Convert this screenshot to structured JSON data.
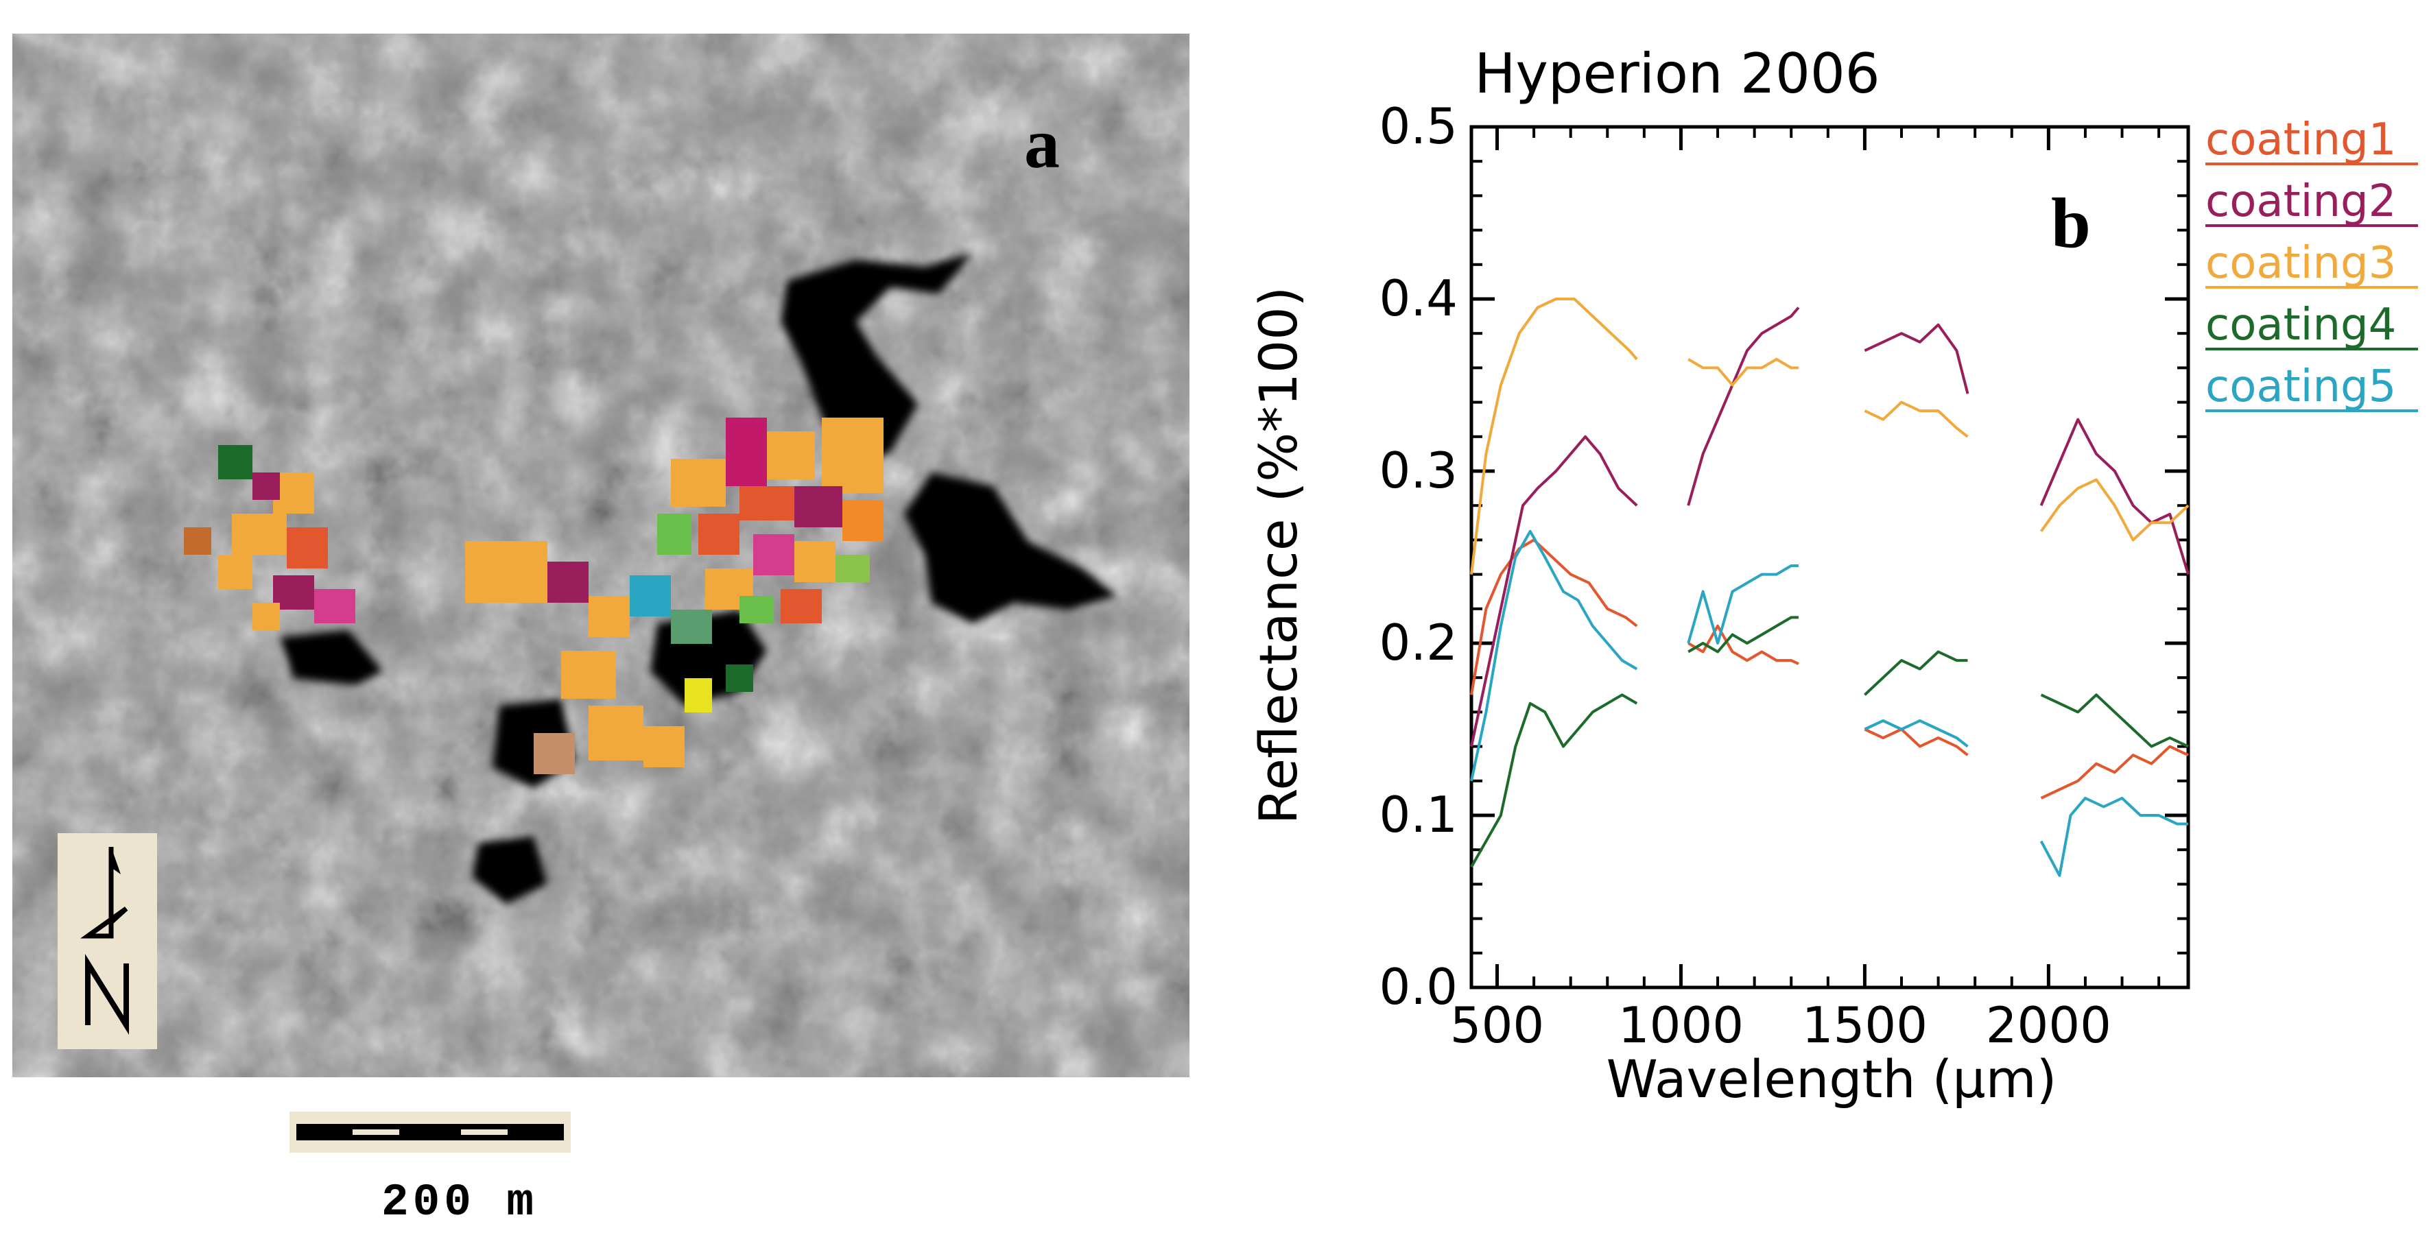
{
  "panel_a": {
    "label": "a",
    "scale_bar_label": "200 m",
    "north_arrow_label": "N"
  },
  "chart_data": {
    "type": "line",
    "panel_label": "b",
    "title": "Hyperion 2006",
    "xlabel": "Wavelength (μm)",
    "ylabel": "Reflectance (%*100)",
    "xlim": [
      430,
      2380
    ],
    "ylim": [
      0.0,
      0.5
    ],
    "xticks": [
      500,
      1000,
      1500,
      2000
    ],
    "yticks": [
      0.0,
      0.1,
      0.2,
      0.3,
      0.4,
      0.5
    ],
    "ytick_labels": [
      "0.0",
      "0.1",
      "0.2",
      "0.3",
      "0.4",
      "0.5"
    ],
    "grid": false,
    "legend_position": "outside-right",
    "series": [
      {
        "name": "coating1",
        "color": "#e2572d",
        "segments": [
          [
            [
              430,
              0.17
            ],
            [
              470,
              0.22
            ],
            [
              510,
              0.24
            ],
            [
              560,
              0.255
            ],
            [
              600,
              0.26
            ],
            [
              650,
              0.25
            ],
            [
              700,
              0.24
            ],
            [
              750,
              0.235
            ],
            [
              800,
              0.22
            ],
            [
              850,
              0.215
            ],
            [
              880,
              0.21
            ]
          ],
          [
            [
              1020,
              0.2
            ],
            [
              1060,
              0.195
            ],
            [
              1100,
              0.21
            ],
            [
              1140,
              0.195
            ],
            [
              1180,
              0.19
            ],
            [
              1220,
              0.195
            ],
            [
              1260,
              0.19
            ],
            [
              1300,
              0.19
            ],
            [
              1320,
              0.188
            ]
          ],
          [
            [
              1500,
              0.15
            ],
            [
              1550,
              0.145
            ],
            [
              1600,
              0.15
            ],
            [
              1650,
              0.14
            ],
            [
              1700,
              0.145
            ],
            [
              1750,
              0.14
            ],
            [
              1780,
              0.135
            ]
          ],
          [
            [
              1980,
              0.11
            ],
            [
              2030,
              0.115
            ],
            [
              2080,
              0.12
            ],
            [
              2130,
              0.13
            ],
            [
              2180,
              0.125
            ],
            [
              2230,
              0.135
            ],
            [
              2280,
              0.13
            ],
            [
              2330,
              0.14
            ],
            [
              2380,
              0.135
            ]
          ]
        ]
      },
      {
        "name": "coating2",
        "color": "#9a1e5c",
        "segments": [
          [
            [
              430,
              0.14
            ],
            [
              480,
              0.19
            ],
            [
              530,
              0.24
            ],
            [
              570,
              0.28
            ],
            [
              610,
              0.29
            ],
            [
              660,
              0.3
            ],
            [
              700,
              0.31
            ],
            [
              740,
              0.32
            ],
            [
              780,
              0.31
            ],
            [
              830,
              0.29
            ],
            [
              880,
              0.28
            ]
          ],
          [
            [
              1020,
              0.28
            ],
            [
              1060,
              0.31
            ],
            [
              1100,
              0.33
            ],
            [
              1140,
              0.35
            ],
            [
              1180,
              0.37
            ],
            [
              1220,
              0.38
            ],
            [
              1260,
              0.385
            ],
            [
              1300,
              0.39
            ],
            [
              1320,
              0.395
            ]
          ],
          [
            [
              1500,
              0.37
            ],
            [
              1550,
              0.375
            ],
            [
              1600,
              0.38
            ],
            [
              1650,
              0.375
            ],
            [
              1700,
              0.385
            ],
            [
              1750,
              0.37
            ],
            [
              1780,
              0.345
            ]
          ],
          [
            [
              1980,
              0.28
            ],
            [
              2030,
              0.305
            ],
            [
              2080,
              0.33
            ],
            [
              2130,
              0.31
            ],
            [
              2180,
              0.3
            ],
            [
              2230,
              0.28
            ],
            [
              2280,
              0.27
            ],
            [
              2330,
              0.275
            ],
            [
              2380,
              0.24
            ]
          ]
        ]
      },
      {
        "name": "coating3",
        "color": "#f2a93b",
        "segments": [
          [
            [
              430,
              0.24
            ],
            [
              470,
              0.31
            ],
            [
              510,
              0.35
            ],
            [
              560,
              0.38
            ],
            [
              610,
              0.395
            ],
            [
              660,
              0.4
            ],
            [
              710,
              0.4
            ],
            [
              760,
              0.39
            ],
            [
              810,
              0.38
            ],
            [
              860,
              0.37
            ],
            [
              880,
              0.365
            ]
          ],
          [
            [
              1020,
              0.365
            ],
            [
              1060,
              0.36
            ],
            [
              1100,
              0.36
            ],
            [
              1140,
              0.35
            ],
            [
              1180,
              0.36
            ],
            [
              1220,
              0.36
            ],
            [
              1260,
              0.365
            ],
            [
              1300,
              0.36
            ],
            [
              1320,
              0.36
            ]
          ],
          [
            [
              1500,
              0.335
            ],
            [
              1550,
              0.33
            ],
            [
              1600,
              0.34
            ],
            [
              1650,
              0.335
            ],
            [
              1700,
              0.335
            ],
            [
              1750,
              0.325
            ],
            [
              1780,
              0.32
            ]
          ],
          [
            [
              1980,
              0.265
            ],
            [
              2030,
              0.28
            ],
            [
              2080,
              0.29
            ],
            [
              2130,
              0.295
            ],
            [
              2180,
              0.28
            ],
            [
              2230,
              0.26
            ],
            [
              2280,
              0.27
            ],
            [
              2330,
              0.27
            ],
            [
              2380,
              0.28
            ]
          ]
        ]
      },
      {
        "name": "coating4",
        "color": "#1c6b2a",
        "segments": [
          [
            [
              430,
              0.07
            ],
            [
              470,
              0.085
            ],
            [
              510,
              0.1
            ],
            [
              550,
              0.14
            ],
            [
              590,
              0.165
            ],
            [
              630,
              0.16
            ],
            [
              680,
              0.14
            ],
            [
              720,
              0.15
            ],
            [
              760,
              0.16
            ],
            [
              800,
              0.165
            ],
            [
              840,
              0.17
            ],
            [
              880,
              0.165
            ]
          ],
          [
            [
              1020,
              0.195
            ],
            [
              1060,
              0.2
            ],
            [
              1100,
              0.195
            ],
            [
              1140,
              0.205
            ],
            [
              1180,
              0.2
            ],
            [
              1220,
              0.205
            ],
            [
              1260,
              0.21
            ],
            [
              1300,
              0.215
            ],
            [
              1320,
              0.215
            ]
          ],
          [
            [
              1500,
              0.17
            ],
            [
              1550,
              0.18
            ],
            [
              1600,
              0.19
            ],
            [
              1650,
              0.185
            ],
            [
              1700,
              0.195
            ],
            [
              1750,
              0.19
            ],
            [
              1780,
              0.19
            ]
          ],
          [
            [
              1980,
              0.17
            ],
            [
              2030,
              0.165
            ],
            [
              2080,
              0.16
            ],
            [
              2130,
              0.17
            ],
            [
              2180,
              0.16
            ],
            [
              2230,
              0.15
            ],
            [
              2280,
              0.14
            ],
            [
              2330,
              0.145
            ],
            [
              2380,
              0.14
            ]
          ]
        ]
      },
      {
        "name": "coating5",
        "color": "#2aa6c3",
        "segments": [
          [
            [
              430,
              0.12
            ],
            [
              470,
              0.16
            ],
            [
              510,
              0.21
            ],
            [
              550,
              0.25
            ],
            [
              590,
              0.265
            ],
            [
              630,
              0.25
            ],
            [
              680,
              0.23
            ],
            [
              720,
              0.225
            ],
            [
              760,
              0.21
            ],
            [
              800,
              0.2
            ],
            [
              840,
              0.19
            ],
            [
              880,
              0.185
            ]
          ],
          [
            [
              1020,
              0.2
            ],
            [
              1060,
              0.23
            ],
            [
              1100,
              0.2
            ],
            [
              1140,
              0.23
            ],
            [
              1180,
              0.235
            ],
            [
              1220,
              0.24
            ],
            [
              1260,
              0.24
            ],
            [
              1300,
              0.245
            ],
            [
              1320,
              0.245
            ]
          ],
          [
            [
              1500,
              0.15
            ],
            [
              1550,
              0.155
            ],
            [
              1600,
              0.15
            ],
            [
              1650,
              0.155
            ],
            [
              1700,
              0.15
            ],
            [
              1750,
              0.145
            ],
            [
              1780,
              0.14
            ]
          ],
          [
            [
              1980,
              0.085
            ],
            [
              2030,
              0.065
            ],
            [
              2060,
              0.1
            ],
            [
              2100,
              0.11
            ],
            [
              2150,
              0.105
            ],
            [
              2200,
              0.11
            ],
            [
              2250,
              0.1
            ],
            [
              2300,
              0.1
            ],
            [
              2350,
              0.095
            ],
            [
              2380,
              0.095
            ]
          ]
        ]
      }
    ]
  }
}
